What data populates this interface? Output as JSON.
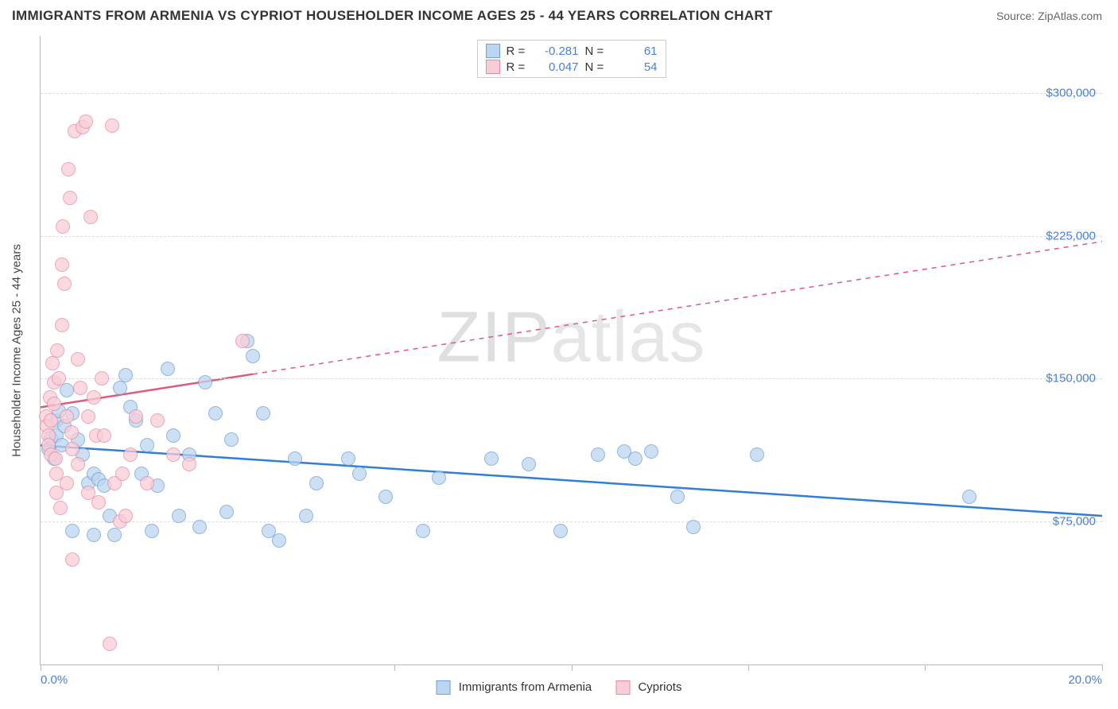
{
  "title": "IMMIGRANTS FROM ARMENIA VS CYPRIOT HOUSEHOLDER INCOME AGES 25 - 44 YEARS CORRELATION CHART",
  "source_label": "Source:",
  "source_value": "ZipAtlas.com",
  "watermark": "ZIPatlas",
  "chart": {
    "type": "scatter",
    "background_color": "#ffffff",
    "grid_color": "#dddddd",
    "axis_color": "#bbbbbb",
    "tick_label_color": "#4a7fd8",
    "axis_title_color": "#444444",
    "title_fontsize": 17,
    "label_fontsize": 15,
    "xlim": [
      0,
      20
    ],
    "ylim": [
      0,
      330000
    ],
    "y_axis_title": "Householder Income Ages 25 - 44 years",
    "x_ticks_pct": [
      0,
      16.67,
      33.33,
      50,
      66.67,
      83.33,
      100
    ],
    "x_min_label": "0.0%",
    "x_max_label": "20.0%",
    "y_gridlines": [
      75000,
      150000,
      225000,
      300000
    ],
    "y_tick_labels": [
      "$75,000",
      "$150,000",
      "$225,000",
      "$300,000"
    ],
    "point_radius": 9,
    "point_opacity": 0.75,
    "series": [
      {
        "name": "Immigrants from Armenia",
        "fill_color": "#bcd5f0",
        "stroke_color": "#6ca0dc",
        "line_color": "#2f7ed8",
        "line_width": 2.5,
        "r": "-0.281",
        "n": "61",
        "trend": {
          "x1_pct": 0,
          "y1": 115000,
          "x2_pct": 100,
          "y2": 78000,
          "dash": false,
          "solid_until_pct": 100
        },
        "points": [
          {
            "x": 0.15,
            "y": 113000
          },
          {
            "x": 0.2,
            "y": 119000
          },
          {
            "x": 0.25,
            "y": 108000
          },
          {
            "x": 0.3,
            "y": 128000
          },
          {
            "x": 0.3,
            "y": 120000
          },
          {
            "x": 0.35,
            "y": 133000
          },
          {
            "x": 0.4,
            "y": 115000
          },
          {
            "x": 0.45,
            "y": 125000
          },
          {
            "x": 0.5,
            "y": 144000
          },
          {
            "x": 0.6,
            "y": 132000
          },
          {
            "x": 0.7,
            "y": 118000
          },
          {
            "x": 0.8,
            "y": 110000
          },
          {
            "x": 0.9,
            "y": 95000
          },
          {
            "x": 1.0,
            "y": 100000
          },
          {
            "x": 1.1,
            "y": 97000
          },
          {
            "x": 1.2,
            "y": 94000
          },
          {
            "x": 1.3,
            "y": 78000
          },
          {
            "x": 1.4,
            "y": 68000
          },
          {
            "x": 1.5,
            "y": 145000
          },
          {
            "x": 1.6,
            "y": 152000
          },
          {
            "x": 1.7,
            "y": 135000
          },
          {
            "x": 1.8,
            "y": 128000
          },
          {
            "x": 1.9,
            "y": 100000
          },
          {
            "x": 2.0,
            "y": 115000
          },
          {
            "x": 2.1,
            "y": 70000
          },
          {
            "x": 2.2,
            "y": 94000
          },
          {
            "x": 2.4,
            "y": 155000
          },
          {
            "x": 2.5,
            "y": 120000
          },
          {
            "x": 2.6,
            "y": 78000
          },
          {
            "x": 2.8,
            "y": 110000
          },
          {
            "x": 3.0,
            "y": 72000
          },
          {
            "x": 3.1,
            "y": 148000
          },
          {
            "x": 3.3,
            "y": 132000
          },
          {
            "x": 3.5,
            "y": 80000
          },
          {
            "x": 3.6,
            "y": 118000
          },
          {
            "x": 3.9,
            "y": 170000
          },
          {
            "x": 4.0,
            "y": 162000
          },
          {
            "x": 4.2,
            "y": 132000
          },
          {
            "x": 4.3,
            "y": 70000
          },
          {
            "x": 4.5,
            "y": 65000
          },
          {
            "x": 4.8,
            "y": 108000
          },
          {
            "x": 5.0,
            "y": 78000
          },
          {
            "x": 5.2,
            "y": 95000
          },
          {
            "x": 5.8,
            "y": 108000
          },
          {
            "x": 6.0,
            "y": 100000
          },
          {
            "x": 6.5,
            "y": 88000
          },
          {
            "x": 7.2,
            "y": 70000
          },
          {
            "x": 7.5,
            "y": 98000
          },
          {
            "x": 8.5,
            "y": 108000
          },
          {
            "x": 9.2,
            "y": 105000
          },
          {
            "x": 9.8,
            "y": 70000
          },
          {
            "x": 10.5,
            "y": 110000
          },
          {
            "x": 11.0,
            "y": 112000
          },
          {
            "x": 11.2,
            "y": 108000
          },
          {
            "x": 11.5,
            "y": 112000
          },
          {
            "x": 12.0,
            "y": 88000
          },
          {
            "x": 12.3,
            "y": 72000
          },
          {
            "x": 13.5,
            "y": 110000
          },
          {
            "x": 17.5,
            "y": 88000
          },
          {
            "x": 1.0,
            "y": 68000
          },
          {
            "x": 0.6,
            "y": 70000
          }
        ]
      },
      {
        "name": "Cypriots",
        "fill_color": "#f9cdd8",
        "stroke_color": "#e88aa2",
        "line_color": "#e05a7d",
        "line_width": 2.5,
        "r": "0.047",
        "n": "54",
        "trend": {
          "x1_pct": 0,
          "y1": 135000,
          "x2_pct": 100,
          "y2": 222000,
          "dash": true,
          "solid_until_pct": 20
        },
        "points": [
          {
            "x": 0.1,
            "y": 130000
          },
          {
            "x": 0.12,
            "y": 125000
          },
          {
            "x": 0.15,
            "y": 120000
          },
          {
            "x": 0.15,
            "y": 115000
          },
          {
            "x": 0.18,
            "y": 140000
          },
          {
            "x": 0.2,
            "y": 128000
          },
          {
            "x": 0.2,
            "y": 110000
          },
          {
            "x": 0.22,
            "y": 158000
          },
          {
            "x": 0.25,
            "y": 148000
          },
          {
            "x": 0.25,
            "y": 137000
          },
          {
            "x": 0.28,
            "y": 108000
          },
          {
            "x": 0.3,
            "y": 100000
          },
          {
            "x": 0.3,
            "y": 90000
          },
          {
            "x": 0.32,
            "y": 165000
          },
          {
            "x": 0.35,
            "y": 150000
          },
          {
            "x": 0.38,
            "y": 82000
          },
          {
            "x": 0.4,
            "y": 178000
          },
          {
            "x": 0.4,
            "y": 210000
          },
          {
            "x": 0.42,
            "y": 230000
          },
          {
            "x": 0.45,
            "y": 200000
          },
          {
            "x": 0.5,
            "y": 130000
          },
          {
            "x": 0.5,
            "y": 95000
          },
          {
            "x": 0.52,
            "y": 260000
          },
          {
            "x": 0.55,
            "y": 245000
          },
          {
            "x": 0.58,
            "y": 122000
          },
          {
            "x": 0.6,
            "y": 113000
          },
          {
            "x": 0.6,
            "y": 55000
          },
          {
            "x": 0.65,
            "y": 280000
          },
          {
            "x": 0.7,
            "y": 160000
          },
          {
            "x": 0.7,
            "y": 105000
          },
          {
            "x": 0.75,
            "y": 145000
          },
          {
            "x": 0.8,
            "y": 282000
          },
          {
            "x": 0.85,
            "y": 285000
          },
          {
            "x": 0.9,
            "y": 130000
          },
          {
            "x": 0.9,
            "y": 90000
          },
          {
            "x": 0.95,
            "y": 235000
          },
          {
            "x": 1.0,
            "y": 140000
          },
          {
            "x": 1.05,
            "y": 120000
          },
          {
            "x": 1.1,
            "y": 85000
          },
          {
            "x": 1.15,
            "y": 150000
          },
          {
            "x": 1.2,
            "y": 120000
          },
          {
            "x": 1.3,
            "y": 11000
          },
          {
            "x": 1.35,
            "y": 283000
          },
          {
            "x": 1.4,
            "y": 95000
          },
          {
            "x": 1.5,
            "y": 75000
          },
          {
            "x": 1.55,
            "y": 100000
          },
          {
            "x": 1.6,
            "y": 78000
          },
          {
            "x": 1.7,
            "y": 110000
          },
          {
            "x": 1.8,
            "y": 130000
          },
          {
            "x": 2.0,
            "y": 95000
          },
          {
            "x": 2.2,
            "y": 128000
          },
          {
            "x": 2.5,
            "y": 110000
          },
          {
            "x": 2.8,
            "y": 105000
          },
          {
            "x": 3.8,
            "y": 170000
          }
        ]
      }
    ]
  },
  "legend_top": {
    "r_label": "R =",
    "n_label": "N ="
  },
  "legend_bottom": {
    "s1": "Immigrants from Armenia",
    "s2": "Cypriots"
  }
}
